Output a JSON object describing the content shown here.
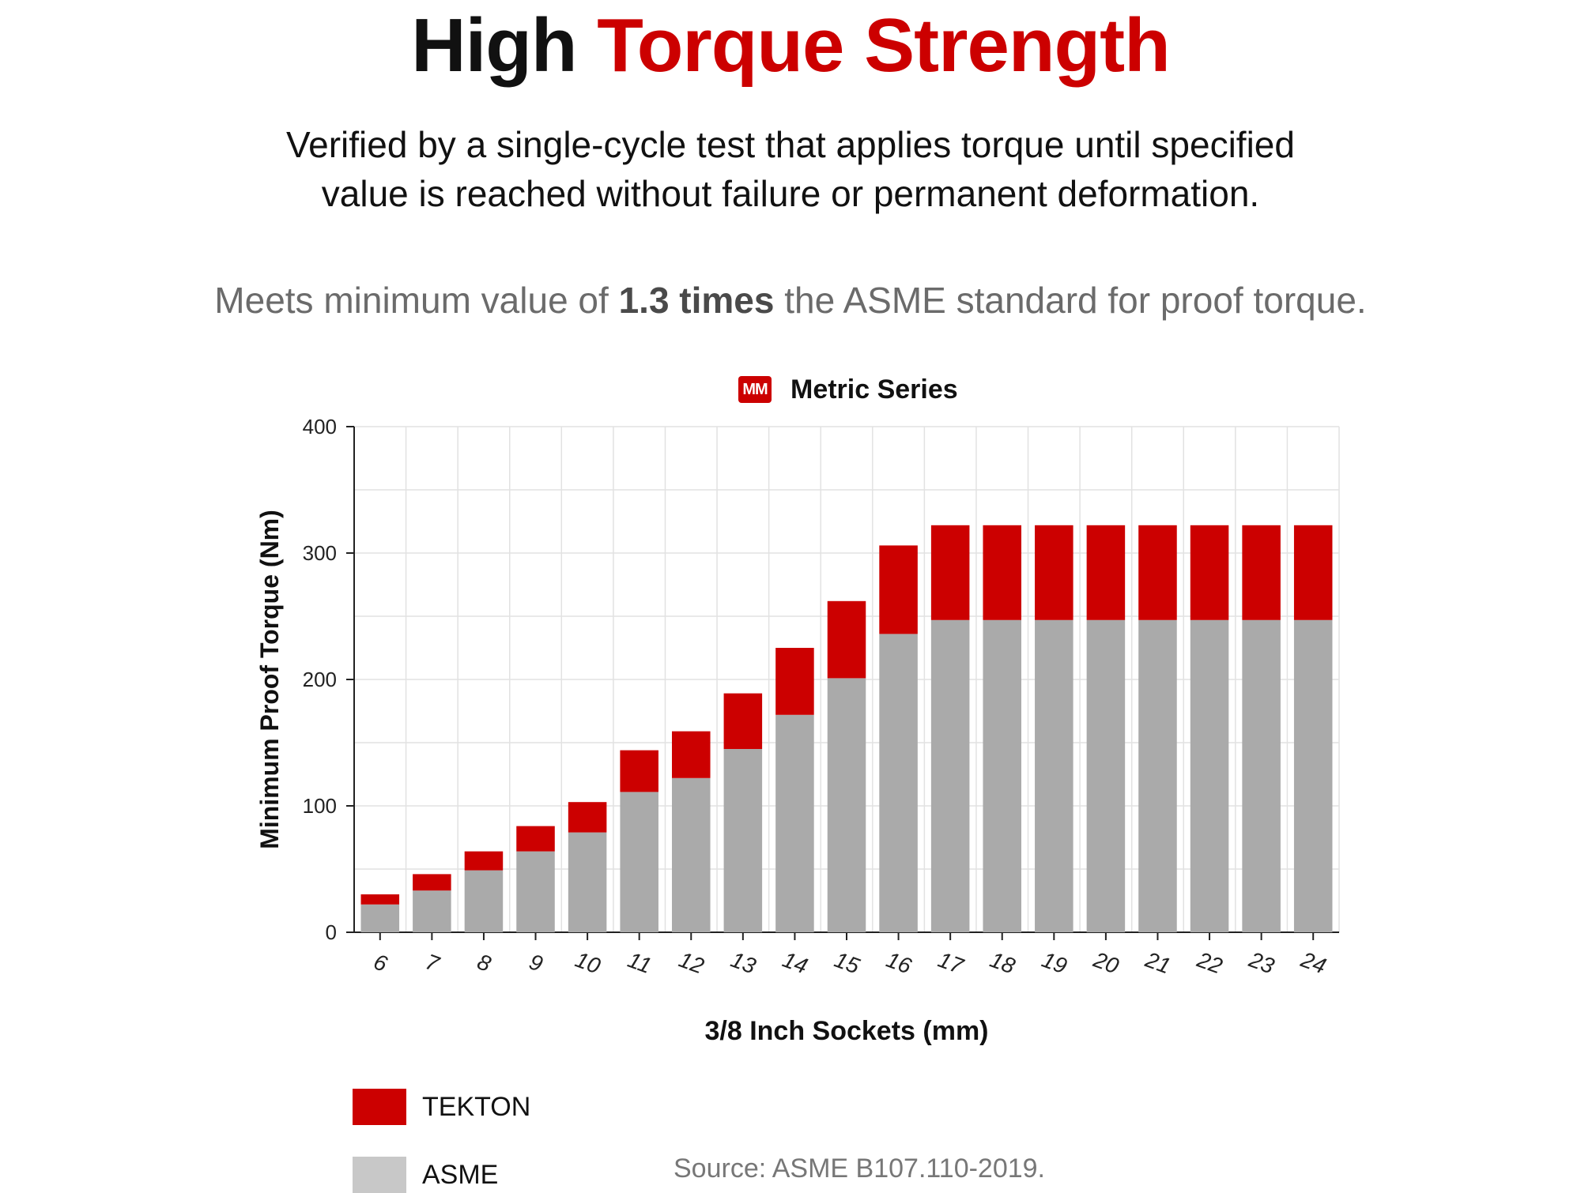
{
  "header": {
    "title_part1": "High",
    "title_part2": "Torque Strength",
    "description_line1": "Verified by a single-cycle test that applies torque until specified",
    "description_line2": "value is reached without failure or permanent deformation.",
    "meets_pre": "Meets minimum value of",
    "meets_bold": "1.3 times",
    "meets_post": "the ASME standard for proof torque."
  },
  "colors": {
    "accent": "#cc0000",
    "asme": "#aaaaaa",
    "asme_legend": "#c8c8c8",
    "grid": "#e2e2e2"
  },
  "badge": {
    "label": "MM"
  },
  "chart_data": {
    "type": "bar",
    "stacked": true,
    "title": "Metric Series",
    "xlabel": "3/8 Inch Sockets (mm)",
    "ylabel": "Minimum Proof Torque (Nm)",
    "ylim": [
      0,
      400
    ],
    "yticks": [
      0,
      100,
      200,
      300,
      400
    ],
    "grid": true,
    "categories": [
      "6",
      "7",
      "8",
      "9",
      "10",
      "11",
      "12",
      "13",
      "14",
      "15",
      "16",
      "17",
      "18",
      "19",
      "20",
      "21",
      "22",
      "23",
      "24"
    ],
    "series": [
      {
        "name": "ASME",
        "color": "#aaaaaa",
        "values": [
          22,
          33,
          49,
          64,
          79,
          111,
          122,
          145,
          172,
          201,
          236,
          247,
          247,
          247,
          247,
          247,
          247,
          247,
          247
        ]
      },
      {
        "name": "TEKTON",
        "color": "#cc0000",
        "values": [
          8,
          13,
          15,
          20,
          24,
          33,
          37,
          44,
          53,
          61,
          70,
          75,
          75,
          75,
          75,
          75,
          75,
          75,
          75
        ]
      }
    ]
  },
  "legend": {
    "items": [
      {
        "label": "TEKTON",
        "color": "#cc0000"
      },
      {
        "label": "ASME",
        "color": "#c8c8c8"
      }
    ]
  },
  "source": "Source: ASME B107.110-2019."
}
